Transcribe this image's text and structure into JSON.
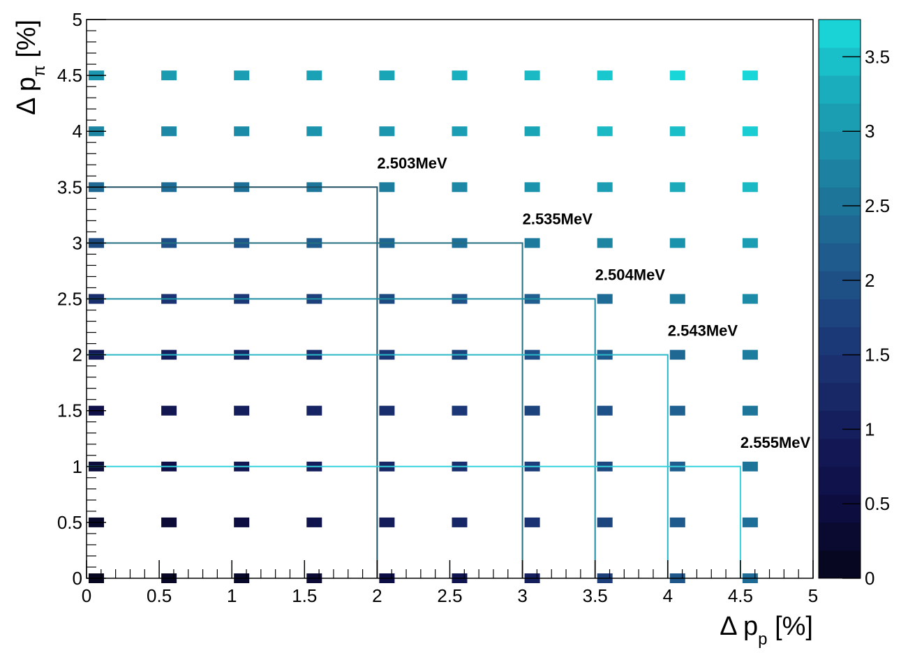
{
  "chart_data": {
    "type": "heatmap",
    "xlabel": "Δ  p",
    "xlabel_sub": "p",
    "xlabel_unit": " [%]",
    "ylabel": "Δ  p",
    "ylabel_sub": "π",
    "ylabel_unit": " [%]",
    "xlim": [
      0,
      5
    ],
    "ylim": [
      0,
      5
    ],
    "x_ticks": [
      "0",
      "0.5",
      "1",
      "1.5",
      "2",
      "2.5",
      "3",
      "3.5",
      "4",
      "4.5",
      "5"
    ],
    "y_ticks": [
      "0",
      "0.5",
      "1",
      "1.5",
      "2",
      "2.5",
      "3",
      "3.5",
      "4",
      "4.5",
      "5"
    ],
    "zlim": [
      0,
      3.75
    ],
    "colorbar_ticks": [
      "0",
      "0.5",
      "1",
      "1.5",
      "2",
      "2.5",
      "3",
      "3.5"
    ],
    "colormap": [
      "#05051a",
      "#0e0e45",
      "#16205f",
      "#1c3a78",
      "#1f5a8c",
      "#1d7f9f",
      "#1aa6b8",
      "#19dcdc"
    ],
    "x": [
      0,
      0.5,
      1,
      1.5,
      2,
      2.5,
      3,
      3.5,
      4,
      4.5
    ],
    "y": [
      0,
      0.5,
      1,
      1.5,
      2,
      2.5,
      3,
      3.5,
      4,
      4.5
    ],
    "z": [
      [
        0.1,
        0.15,
        0.2,
        0.35,
        0.55,
        0.75,
        1.05,
        1.7,
        2.1,
        2.4
      ],
      [
        0.2,
        0.35,
        0.5,
        0.7,
        0.95,
        1.2,
        1.45,
        1.8,
        2.15,
        2.45
      ],
      [
        0.4,
        0.6,
        0.8,
        1.0,
        1.2,
        1.4,
        1.65,
        1.85,
        2.2,
        2.5
      ],
      [
        0.6,
        0.8,
        1.0,
        1.15,
        1.35,
        1.55,
        1.75,
        2.0,
        2.25,
        2.55
      ],
      [
        0.9,
        1.0,
        1.2,
        1.35,
        1.55,
        1.75,
        1.95,
        2.15,
        2.35,
        2.65
      ],
      [
        1.35,
        1.45,
        1.55,
        1.7,
        1.85,
        2.0,
        2.2,
        2.4,
        2.6,
        2.85
      ],
      [
        1.85,
        1.95,
        2.05,
        2.15,
        2.3,
        2.45,
        2.6,
        2.75,
        2.95,
        3.1
      ],
      [
        2.35,
        2.4,
        2.45,
        2.55,
        2.65,
        2.8,
        2.95,
        3.1,
        3.25,
        3.4
      ],
      [
        2.75,
        2.8,
        2.85,
        2.95,
        3.0,
        3.1,
        3.2,
        3.4,
        3.45,
        3.6
      ],
      [
        3.0,
        3.05,
        3.1,
        3.15,
        3.2,
        3.3,
        3.4,
        3.55,
        3.7,
        3.7
      ]
    ],
    "contours": [
      {
        "label": "2.503MeV",
        "x_end": 2.0,
        "y_end": 3.5,
        "color": "#1e4f62"
      },
      {
        "label": "2.535MeV",
        "x_end": 3.0,
        "y_end": 3.0,
        "color": "#236f80"
      },
      {
        "label": "2.504MeV",
        "x_end": 3.5,
        "y_end": 2.5,
        "color": "#1e8ea3"
      },
      {
        "label": "2.543MeV",
        "x_end": 4.0,
        "y_end": 2.0,
        "color": "#2ab7c8"
      },
      {
        "label": "2.555MeV",
        "x_end": 4.5,
        "y_end": 1.0,
        "color": "#36d2dc"
      }
    ]
  }
}
